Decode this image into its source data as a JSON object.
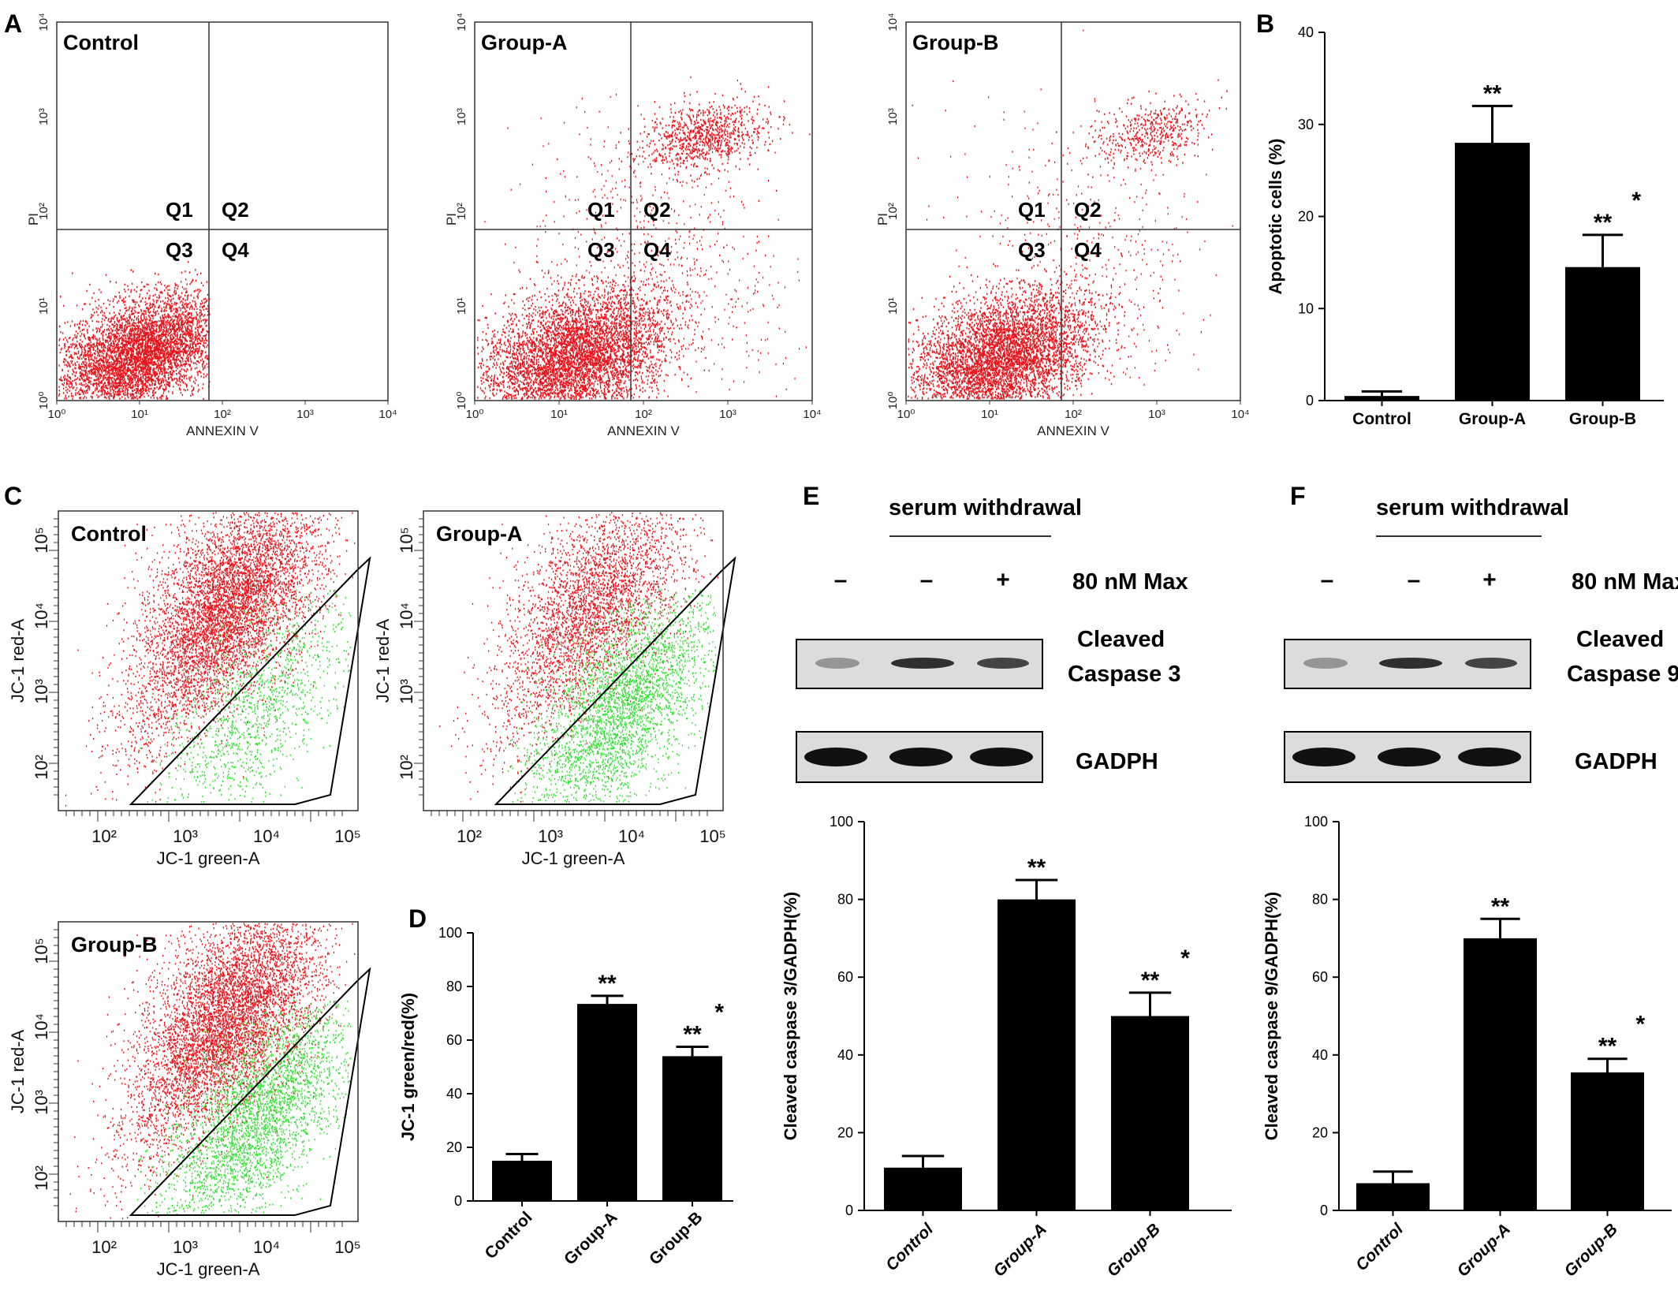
{
  "panel_letters": [
    "A",
    "B",
    "C",
    "D",
    "E",
    "F"
  ],
  "flow_cytometry_annexin": {
    "x_axis_label": "ANNEXIN V",
    "y_axis_label": "PI",
    "ticks": [
      "10⁰",
      "10¹",
      "10²",
      "10³",
      "10⁴"
    ],
    "quadrants": [
      "Q1",
      "Q2",
      "Q3",
      "Q4"
    ],
    "plots": [
      {
        "title": "Control"
      },
      {
        "title": "Group-A"
      },
      {
        "title": "Group-B"
      }
    ]
  },
  "flow_cytometry_jc1": {
    "x_axis_label": "JC-1 green-A",
    "y_axis_label": "JC-1 red-A",
    "x_ticks": [
      "10²",
      "10³",
      "10⁴",
      "10⁵"
    ],
    "y_ticks": [
      "10²",
      "10³",
      "10⁴",
      "10⁵"
    ],
    "plots": [
      {
        "title": "Control"
      },
      {
        "title": "Group-A"
      },
      {
        "title": "Group-B"
      }
    ]
  },
  "western_blot": {
    "header": "serum withdrawal",
    "treatment_label": "80 nM Max",
    "signs": [
      "–",
      "–",
      "+"
    ],
    "panel_E": {
      "target": [
        "Cleaved",
        "Caspase 3"
      ],
      "loading": "GADPH"
    },
    "panel_F": {
      "target": [
        "Cleaved",
        "Caspase 9"
      ],
      "loading": "GADPH"
    }
  },
  "colors": {
    "red_population": "#e8141c",
    "green_population": "#34e034",
    "bar": "#000000"
  },
  "chart_data": [
    {
      "panel": "B",
      "type": "bar",
      "categories": [
        "Control",
        "Group-A",
        "Group-B"
      ],
      "values": [
        0.5,
        28,
        14.5
      ],
      "errors": [
        0.5,
        4,
        3.5
      ],
      "significance": [
        "",
        "**",
        "** *"
      ],
      "ylabel": "Apoptotic cells (%)",
      "ylim": [
        0,
        40
      ],
      "yticks": [
        0,
        10,
        20,
        30,
        40
      ]
    },
    {
      "panel": "D",
      "type": "bar",
      "categories": [
        "Control",
        "Group-A",
        "Group-B"
      ],
      "values": [
        15,
        73.5,
        54
      ],
      "errors": [
        2.5,
        3,
        3.5
      ],
      "significance": [
        "",
        "**",
        "** *"
      ],
      "ylabel": "JC-1 green/red(%)",
      "ylim": [
        0,
        100
      ],
      "yticks": [
        0,
        20,
        40,
        60,
        80,
        100
      ]
    },
    {
      "panel": "E",
      "type": "bar",
      "categories": [
        "Control",
        "Group-A",
        "Group-B"
      ],
      "values": [
        11,
        80,
        50
      ],
      "errors": [
        3,
        5,
        6
      ],
      "significance": [
        "",
        "**",
        "** *"
      ],
      "ylabel": "Cleaved caspase 3/GADPH(%)",
      "ylim": [
        0,
        100
      ],
      "yticks": [
        0,
        20,
        40,
        60,
        80,
        100
      ]
    },
    {
      "panel": "F",
      "type": "bar",
      "categories": [
        "Control",
        "Group-A",
        "Group-B"
      ],
      "values": [
        7,
        70,
        35.5
      ],
      "errors": [
        3,
        5,
        3.5
      ],
      "significance": [
        "",
        "**",
        "** *"
      ],
      "ylabel": "Cleaved caspase 9/GADPH(%)",
      "ylim": [
        0,
        100
      ],
      "yticks": [
        0,
        20,
        40,
        60,
        80,
        100
      ]
    }
  ]
}
